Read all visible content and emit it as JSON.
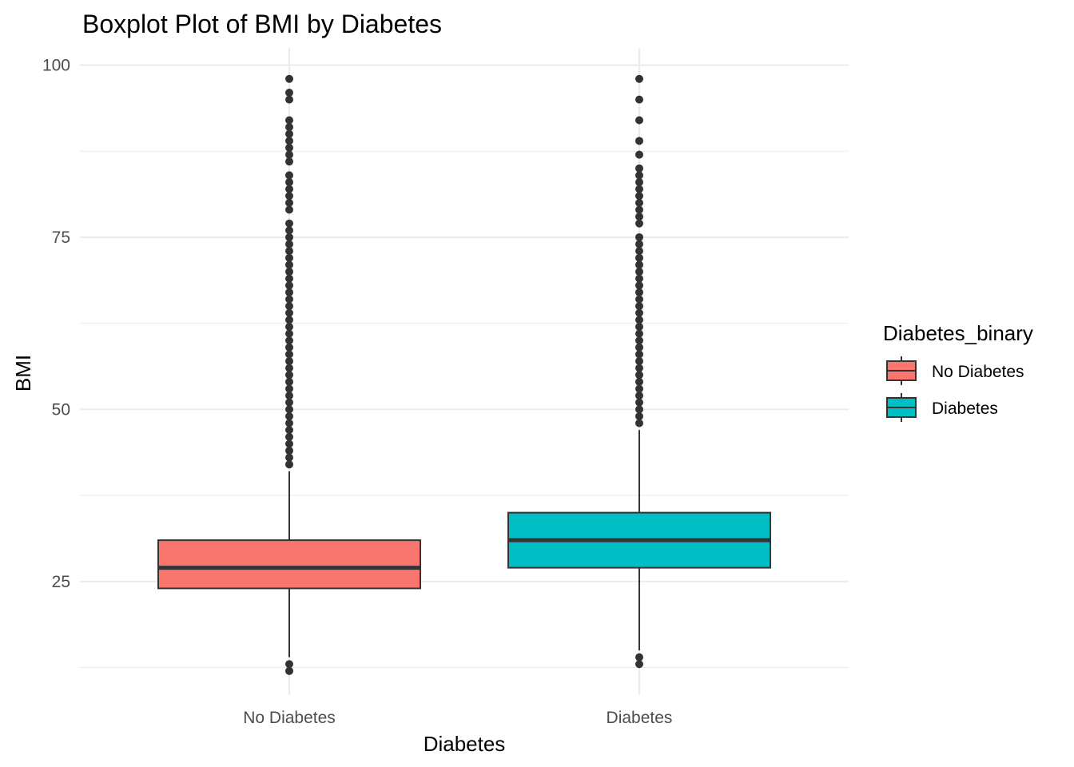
{
  "chart_data": {
    "type": "boxplot",
    "title": "Boxplot Plot of BMI by Diabetes",
    "xlabel": "Diabetes",
    "ylabel": "BMI",
    "categories": [
      "No Diabetes",
      "Diabetes"
    ],
    "ylim": [
      8.5,
      102.5
    ],
    "yticks": [
      25,
      50,
      75,
      100
    ],
    "y_minor_gridlines": [
      12.5,
      37.5,
      62.5,
      87.5
    ],
    "grid": true,
    "legend": {
      "title": "Diabetes_binary",
      "position": "right",
      "entries": [
        "No Diabetes",
        "Diabetes"
      ]
    },
    "colors": {
      "No Diabetes": "#F8766D",
      "Diabetes": "#00BFC4",
      "outline": "#333333",
      "grid": "#ebebeb"
    },
    "series": [
      {
        "category": "No Diabetes",
        "q1": 24,
        "median": 27,
        "q3": 31,
        "whisker_low": 14,
        "whisker_high": 41,
        "outliers": [
          12,
          13,
          42,
          43,
          44,
          45,
          46,
          47,
          48,
          49,
          50,
          51,
          52,
          53,
          54,
          55,
          56,
          57,
          58,
          59,
          60,
          61,
          62,
          63,
          64,
          65,
          66,
          67,
          68,
          69,
          70,
          71,
          72,
          73,
          74,
          75,
          76,
          77,
          79,
          80,
          81,
          82,
          83,
          84,
          86,
          87,
          88,
          89,
          90,
          91,
          92,
          95,
          96,
          98
        ]
      },
      {
        "category": "Diabetes",
        "q1": 27,
        "median": 31,
        "q3": 35,
        "whisker_low": 15,
        "whisker_high": 47,
        "outliers": [
          13,
          14,
          48,
          49,
          50,
          51,
          52,
          53,
          54,
          55,
          56,
          57,
          58,
          59,
          60,
          61,
          62,
          63,
          64,
          65,
          66,
          67,
          68,
          69,
          70,
          71,
          72,
          73,
          74,
          75,
          77,
          78,
          79,
          80,
          81,
          82,
          83,
          84,
          85,
          87,
          89,
          92,
          95,
          98
        ]
      }
    ]
  }
}
